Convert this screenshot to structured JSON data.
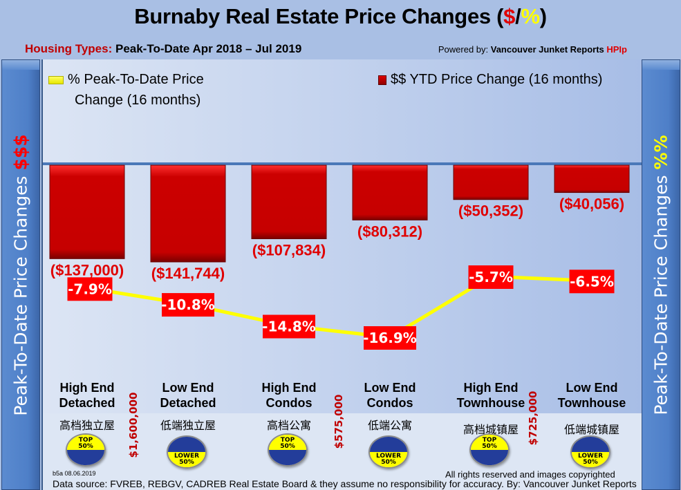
{
  "header": {
    "title_main": "Burnaby Real Estate Price Changes (",
    "title_dollar": "$",
    "title_slash": "/",
    "title_pct": "%",
    "title_close": ")",
    "subtitle_label": "Housing Types:",
    "subtitle_period": "Peak-To-Date Apr 2018 – Jul 2019",
    "powered_prefix": "Powered by:",
    "powered_name": "Vancouver Junket Reports",
    "powered_brand": "HPIp"
  },
  "side_left": {
    "text": "Peak-To-Date Price Changes",
    "accent": "$$$"
  },
  "side_right": {
    "text": "Peak-To-Date  Price  Changes",
    "accent": "%%"
  },
  "legend": {
    "line_label_1": "% Peak-To-Date Price",
    "line_label_2": "Change (16 months)",
    "bar_label": "$$ YTD Price Change (16 months)"
  },
  "chart_data": {
    "type": "bar",
    "title": "Burnaby Real Estate Price Changes ($/%)",
    "categories": [
      "High End Detached",
      "Low End Detached",
      "High End Condos",
      "Low End Condos",
      "High End Townhouse",
      "Low End Townhouse"
    ],
    "series": [
      {
        "name": "$$ YTD Price Change (16 months)",
        "type": "bar",
        "color": "#cc0000",
        "values": [
          -137000,
          -141744,
          -107834,
          -80312,
          -50352,
          -40056
        ],
        "labels": [
          "($137,000)",
          "($141,744)",
          "($107,834)",
          "($80,312)",
          "($50,352)",
          "($40,056)"
        ]
      },
      {
        "name": "% Peak-To-Date Price Change (16 months)",
        "type": "line",
        "color": "#ffff00",
        "values": [
          -7.9,
          -10.8,
          -14.8,
          -16.9,
          -5.7,
          -6.5
        ],
        "labels": [
          "-7.9%",
          "-10.8%",
          "-14.8%",
          "-16.9%",
          "-5.7%",
          "-6.5%"
        ]
      }
    ],
    "bar_ylim": [
      -180000,
      0
    ],
    "line_ylim": [
      -30,
      0
    ],
    "legend_placement": "top",
    "grid": false
  },
  "categories_display": [
    {
      "line1": "High End",
      "line2": "Detached",
      "chinese": "高档独立屋",
      "tier": "TOP",
      "tier_pct": "50%"
    },
    {
      "line1": "Low End",
      "line2": "Detached",
      "chinese": "低端独立屋",
      "tier": "LOWER",
      "tier_pct": "50%"
    },
    {
      "line1": "High End",
      "line2": "Condos",
      "chinese": "高档公寓",
      "tier": "TOP",
      "tier_pct": "50%"
    },
    {
      "line1": "Low End",
      "line2": "Condos",
      "chinese": "低端公寓",
      "tier": "LOWER",
      "tier_pct": "50%"
    },
    {
      "line1": "High End",
      "line2": "Townhouse",
      "chinese": "高档城镇屋",
      "tier": "TOP",
      "tier_pct": "50%"
    },
    {
      "line1": "Low End",
      "line2": "Townhouse",
      "chinese": "低端城镇屋",
      "tier": "LOWER",
      "tier_pct": "50%"
    }
  ],
  "thresholds": [
    "$1,600,000",
    "$575,000",
    "$725,000"
  ],
  "footer": {
    "version": "b5a 08.06.2019",
    "rights": "All rights reserved and  images copyrighted",
    "source": "Data source: FVREB, REBGV, CADREB Real Estate Board & they assume no responsibility for accuracy. By: Vancouver Junket Reports"
  },
  "colors": {
    "bar": "#cc0000",
    "line": "#ffff00",
    "label_bg": "#ff0000",
    "badge_yellow": "#ffff00",
    "badge_blue": "#233d9a"
  }
}
